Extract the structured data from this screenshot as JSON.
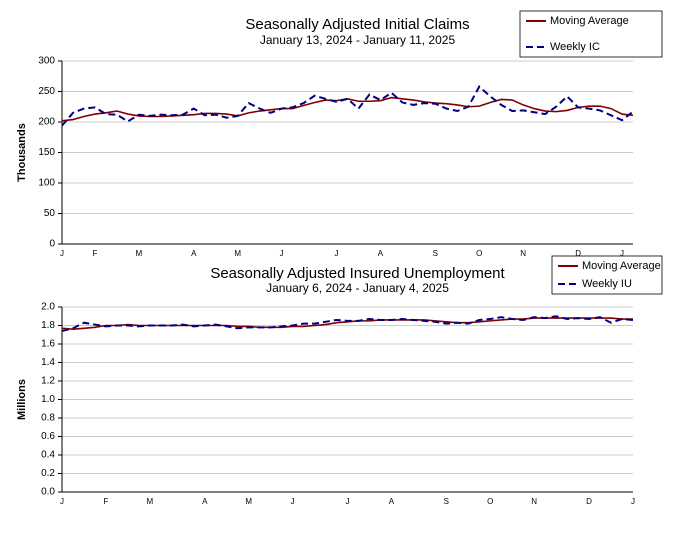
{
  "chart_data": [
    {
      "type": "line",
      "title": "Seasonally Adjusted Initial Claims",
      "subtitle": "January 13, 2024 - January 11, 2025",
      "y_label": "Thousands",
      "categories": [
        "J",
        null,
        null,
        "F",
        null,
        null,
        null,
        "M",
        null,
        null,
        null,
        null,
        "A",
        null,
        null,
        null,
        "M",
        null,
        null,
        null,
        "J",
        null,
        null,
        null,
        null,
        "J",
        null,
        null,
        null,
        "A",
        null,
        null,
        null,
        null,
        "S",
        null,
        null,
        null,
        "O",
        null,
        null,
        null,
        "N",
        null,
        null,
        null,
        null,
        "D",
        null,
        null,
        null,
        "J",
        null
      ],
      "series": [
        {
          "name": "Moving Average",
          "color": "#800000",
          "style": "solid",
          "values": [
            202,
            204,
            209,
            213,
            215,
            218,
            213,
            210,
            209,
            209,
            210,
            211,
            212,
            214,
            214,
            213,
            210,
            215,
            218,
            220,
            222,
            222,
            227,
            232,
            236,
            235,
            238,
            234,
            234,
            235,
            240,
            238,
            236,
            233,
            231,
            230,
            228,
            225,
            226,
            232,
            237,
            236,
            228,
            222,
            218,
            217,
            219,
            224,
            226,
            226,
            222,
            213,
            211
          ]
        },
        {
          "name": "Weekly IC",
          "color": "#000080",
          "style": "dashed",
          "values": [
            194,
            215,
            222,
            224,
            213,
            212,
            201,
            212,
            210,
            212,
            211,
            212,
            222,
            211,
            212,
            207,
            210,
            231,
            222,
            215,
            222,
            224,
            231,
            243,
            238,
            233,
            238,
            222,
            245,
            236,
            248,
            232,
            228,
            231,
            230,
            222,
            218,
            225,
            258,
            242,
            228,
            218,
            219,
            216,
            213,
            225,
            242,
            224,
            222,
            219,
            211,
            203,
            217
          ]
        }
      ],
      "ylim": [
        0,
        300
      ],
      "yticks": [
        0,
        50,
        100,
        150,
        200,
        250,
        300
      ],
      "grid": true,
      "legend": "top-right"
    },
    {
      "type": "line",
      "title": "Seasonally Adjusted Insured Unemployment",
      "subtitle": "January 6, 2024 - January 4, 2025",
      "y_label": "Millions",
      "categories": [
        "J",
        null,
        null,
        null,
        "F",
        null,
        null,
        null,
        "M",
        null,
        null,
        null,
        null,
        "A",
        null,
        null,
        null,
        "M",
        null,
        null,
        null,
        "J",
        null,
        null,
        null,
        null,
        "J",
        null,
        null,
        null,
        "A",
        null,
        null,
        null,
        null,
        "S",
        null,
        null,
        null,
        "O",
        null,
        null,
        null,
        "N",
        null,
        null,
        null,
        null,
        "D",
        null,
        null,
        null,
        "J"
      ],
      "series": [
        {
          "name": "Moving Average",
          "color": "#800000",
          "style": "solid",
          "values": [
            1.77,
            1.76,
            1.77,
            1.78,
            1.8,
            1.8,
            1.81,
            1.8,
            1.8,
            1.8,
            1.8,
            1.8,
            1.8,
            1.8,
            1.8,
            1.8,
            1.79,
            1.79,
            1.78,
            1.78,
            1.78,
            1.79,
            1.79,
            1.8,
            1.81,
            1.83,
            1.84,
            1.85,
            1.85,
            1.86,
            1.86,
            1.86,
            1.86,
            1.86,
            1.85,
            1.84,
            1.83,
            1.83,
            1.84,
            1.85,
            1.86,
            1.87,
            1.87,
            1.88,
            1.88,
            1.88,
            1.88,
            1.88,
            1.88,
            1.88,
            1.88,
            1.87,
            1.87
          ]
        },
        {
          "name": "Weekly IU",
          "color": "#000080",
          "style": "dashed",
          "values": [
            1.74,
            1.77,
            1.83,
            1.81,
            1.79,
            1.8,
            1.8,
            1.79,
            1.8,
            1.8,
            1.8,
            1.81,
            1.79,
            1.8,
            1.81,
            1.79,
            1.77,
            1.78,
            1.78,
            1.78,
            1.79,
            1.8,
            1.82,
            1.82,
            1.84,
            1.86,
            1.85,
            1.85,
            1.87,
            1.86,
            1.86,
            1.87,
            1.86,
            1.85,
            1.84,
            1.82,
            1.83,
            1.82,
            1.86,
            1.87,
            1.89,
            1.87,
            1.86,
            1.89,
            1.88,
            1.9,
            1.87,
            1.88,
            1.87,
            1.89,
            1.83,
            1.87,
            1.86
          ]
        }
      ],
      "ylim": [
        0,
        2
      ],
      "yticks": [
        {
          "value": 0,
          "label": "0.0"
        },
        0.2,
        0.4,
        0.6,
        0.8,
        {
          "value": 1,
          "label": "1.0"
        },
        1.2,
        1.4,
        1.6,
        1.8,
        {
          "value": 2,
          "label": "2.0"
        }
      ],
      "grid": true,
      "legend": "top-right"
    }
  ]
}
